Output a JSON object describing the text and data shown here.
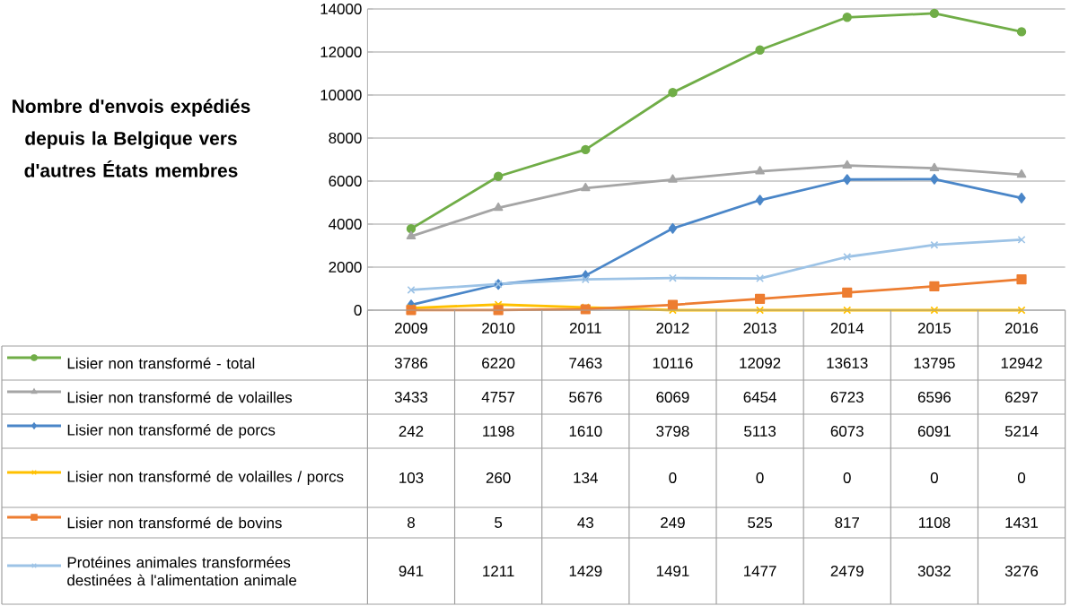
{
  "chart_data": {
    "type": "line",
    "title": "Nombre d'envois expédiés depuis la Belgique vers d'autres États membres",
    "categories": [
      "2009",
      "2010",
      "2011",
      "2012",
      "2013",
      "2014",
      "2015",
      "2016"
    ],
    "series": [
      {
        "name": "Lisier non transformé - total",
        "color": "#70ad47",
        "marker": "circle",
        "values": [
          3786,
          6220,
          7463,
          10116,
          12092,
          13613,
          13795,
          12942
        ]
      },
      {
        "name": "Lisier non transformé de volailles",
        "color": "#a5a5a5",
        "marker": "triangle",
        "values": [
          3433,
          4757,
          5676,
          6069,
          6454,
          6723,
          6596,
          6297
        ]
      },
      {
        "name": "Lisier non transformé de porcs",
        "color": "#4a86c8",
        "marker": "diamond",
        "values": [
          242,
          1198,
          1610,
          3798,
          5113,
          6073,
          6091,
          5214
        ]
      },
      {
        "name": "Lisier non transformé de volailles / porcs",
        "color": "#ffc000",
        "marker": "cross",
        "values": [
          103,
          260,
          134,
          0,
          0,
          0,
          0,
          0
        ]
      },
      {
        "name": "Lisier non transformé de bovins",
        "color": "#ed7d31",
        "marker": "square",
        "values": [
          8,
          5,
          43,
          249,
          525,
          817,
          1108,
          1431
        ]
      },
      {
        "name": "Protéines animales transformées destinées à l'alimentation animale",
        "color": "#9dc3e6",
        "marker": "cross",
        "values": [
          941,
          1211,
          1429,
          1491,
          1477,
          2479,
          3032,
          3276
        ]
      }
    ],
    "ylim": [
      0,
      14000
    ],
    "yticks": [
      0,
      2000,
      4000,
      6000,
      8000,
      10000,
      12000,
      14000
    ],
    "grid": "y",
    "legend": "bottom",
    "data_labels": true
  }
}
